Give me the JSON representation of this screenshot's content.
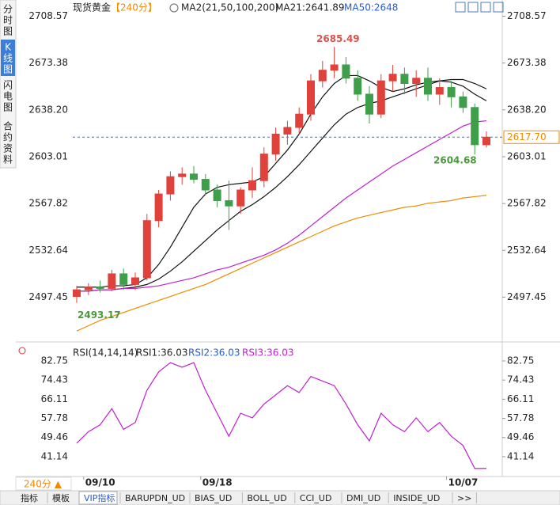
{
  "chart_data": {
    "type": "candlestick",
    "header": {
      "title": "现货黄金",
      "period": "【240分】",
      "ma_spec": "MA2(21,50,100,200)",
      "ma21": "MA21:2641.89",
      "ma50": "MA50:2648"
    },
    "side_menu": [
      "分时图",
      "K线图",
      "闪电图",
      "合约资料"
    ],
    "categories": [
      null,
      "09/10",
      null,
      null,
      null,
      null,
      null,
      null,
      null,
      null,
      null,
      "09/18",
      null,
      null,
      null,
      null,
      null,
      null,
      null,
      null,
      null,
      null,
      null,
      null,
      null,
      null,
      null,
      null,
      null,
      null,
      null,
      null,
      "10/07",
      null,
      null,
      null
    ],
    "open": [
      2498,
      2503,
      2505,
      2504,
      2515,
      2507,
      2512,
      2555,
      2575,
      2588,
      2590,
      2586,
      2578,
      2570,
      2566,
      2578,
      2585,
      2605,
      2620,
      2625,
      2635,
      2660,
      2668,
      2672,
      2662,
      2650,
      2635,
      2660,
      2665,
      2658,
      2662,
      2650,
      2655,
      2648,
      2640,
      2612
    ],
    "high": [
      2506,
      2508,
      2510,
      2518,
      2519,
      2516,
      2560,
      2578,
      2592,
      2595,
      2596,
      2590,
      2582,
      2585,
      2580,
      2595,
      2610,
      2625,
      2630,
      2640,
      2665,
      2675,
      2685.49,
      2678,
      2668,
      2656,
      2665,
      2672,
      2670,
      2668,
      2670,
      2662,
      2660,
      2652,
      2643,
      2622
    ],
    "low": [
      2493.17,
      2499,
      2501,
      2502,
      2503,
      2503,
      2510,
      2550,
      2570,
      2582,
      2583,
      2574,
      2565,
      2548,
      2560,
      2572,
      2580,
      2600,
      2612,
      2620,
      2630,
      2655,
      2662,
      2658,
      2645,
      2628,
      2632,
      2652,
      2650,
      2648,
      2645,
      2642,
      2640,
      2636,
      2604.68,
      2610
    ],
    "close": [
      2503,
      2505,
      2504,
      2515,
      2507,
      2512,
      2555,
      2575,
      2588,
      2590,
      2586,
      2578,
      2570,
      2566,
      2578,
      2585,
      2605,
      2620,
      2625,
      2635,
      2660,
      2668,
      2672,
      2662,
      2650,
      2635,
      2660,
      2665,
      2658,
      2662,
      2650,
      2655,
      2648,
      2640,
      2612,
      2617.7
    ],
    "up_color": "#e0413a",
    "down_color": "#3f9e4a",
    "lines": [
      {
        "color": "#111111",
        "values": [
          2505,
          2505,
          2505,
          2506,
          2506,
          2507,
          2512,
          2522,
          2535,
          2550,
          2565,
          2575,
          2580,
          2582,
          2583,
          2584,
          2588,
          2598,
          2608,
          2620,
          2635,
          2648,
          2658,
          2664,
          2664,
          2660,
          2655,
          2652,
          2654,
          2657,
          2659,
          2660,
          2659,
          2656,
          2650,
          2645
        ]
      },
      {
        "color": "#111111",
        "values": [
          2502,
          2502,
          2503,
          2503,
          2504,
          2505,
          2507,
          2511,
          2517,
          2524,
          2532,
          2540,
          2548,
          2555,
          2562,
          2567,
          2573,
          2580,
          2588,
          2597,
          2607,
          2617,
          2627,
          2635,
          2640,
          2643,
          2645,
          2648,
          2651,
          2654,
          2657,
          2660,
          2661,
          2661,
          2658,
          2654
        ]
      },
      {
        "color": "#c020d0",
        "values": [
          2502,
          2502,
          2503,
          2503,
          2504,
          2504,
          2505,
          2506,
          2508,
          2510,
          2512,
          2515,
          2518,
          2520,
          2523,
          2526,
          2529,
          2533,
          2538,
          2544,
          2551,
          2558,
          2565,
          2572,
          2578,
          2584,
          2590,
          2596,
          2601,
          2606,
          2611,
          2616,
          2621,
          2626,
          2629,
          2630
        ]
      },
      {
        "color": "#f08a00",
        "values": [
          2472,
          2476,
          2480,
          2483,
          2486,
          2489,
          2492,
          2495,
          2498,
          2501,
          2504,
          2507,
          2511,
          2515,
          2519,
          2523,
          2527,
          2531,
          2535,
          2539,
          2543,
          2547,
          2551,
          2554,
          2557,
          2559,
          2561,
          2563,
          2565,
          2566,
          2568,
          2569,
          2570,
          2572,
          2573,
          2574
        ]
      }
    ],
    "ylim": [
      2465,
      2716
    ],
    "yticks": [
      2708.57,
      2673.38,
      {
        "value": 2638.2,
        "label": "2638.20"
      },
      2603.01,
      2567.82,
      2532.64,
      2497.45
    ],
    "annotations": [
      {
        "value": 2685.49,
        "color": "#d9534f"
      },
      {
        "value": 2493.17,
        "color": "#4a9a3c"
      },
      {
        "value": 2604.68,
        "color": "#4a9a3c"
      }
    ],
    "last_price": {
      "value": 2617.7,
      "label": "2617.70",
      "color": "#f08a00"
    },
    "rsi": {
      "header": {
        "spec": "RSI(14,14,14)",
        "rsi1": "RSI1:36.03",
        "rsi2": "RSI2:36.03",
        "rsi3": "RSI3:36.03"
      },
      "color": "#c020d0",
      "values": [
        47,
        52,
        55,
        62,
        53,
        56,
        70,
        78,
        82,
        80,
        82,
        70,
        60,
        50,
        60,
        58,
        64,
        68,
        72,
        69,
        76,
        74,
        72,
        64,
        55,
        48,
        60,
        55,
        52,
        58,
        52,
        56,
        50,
        46,
        36,
        36.03
      ],
      "ylim": [
        33.2,
        88.25
      ],
      "yticks": [
        82.75,
        74.43,
        66.11,
        57.78,
        49.46,
        41.14
      ]
    },
    "period_button": "240分 ▲",
    "tabs": [
      "指标",
      "模板",
      "VIP指标",
      "BARUPDN_UD",
      "BIAS_UD",
      "BOLL_UD",
      "CCI_UD",
      "DMI_UD",
      "INSIDE_UD",
      ">>"
    ]
  }
}
